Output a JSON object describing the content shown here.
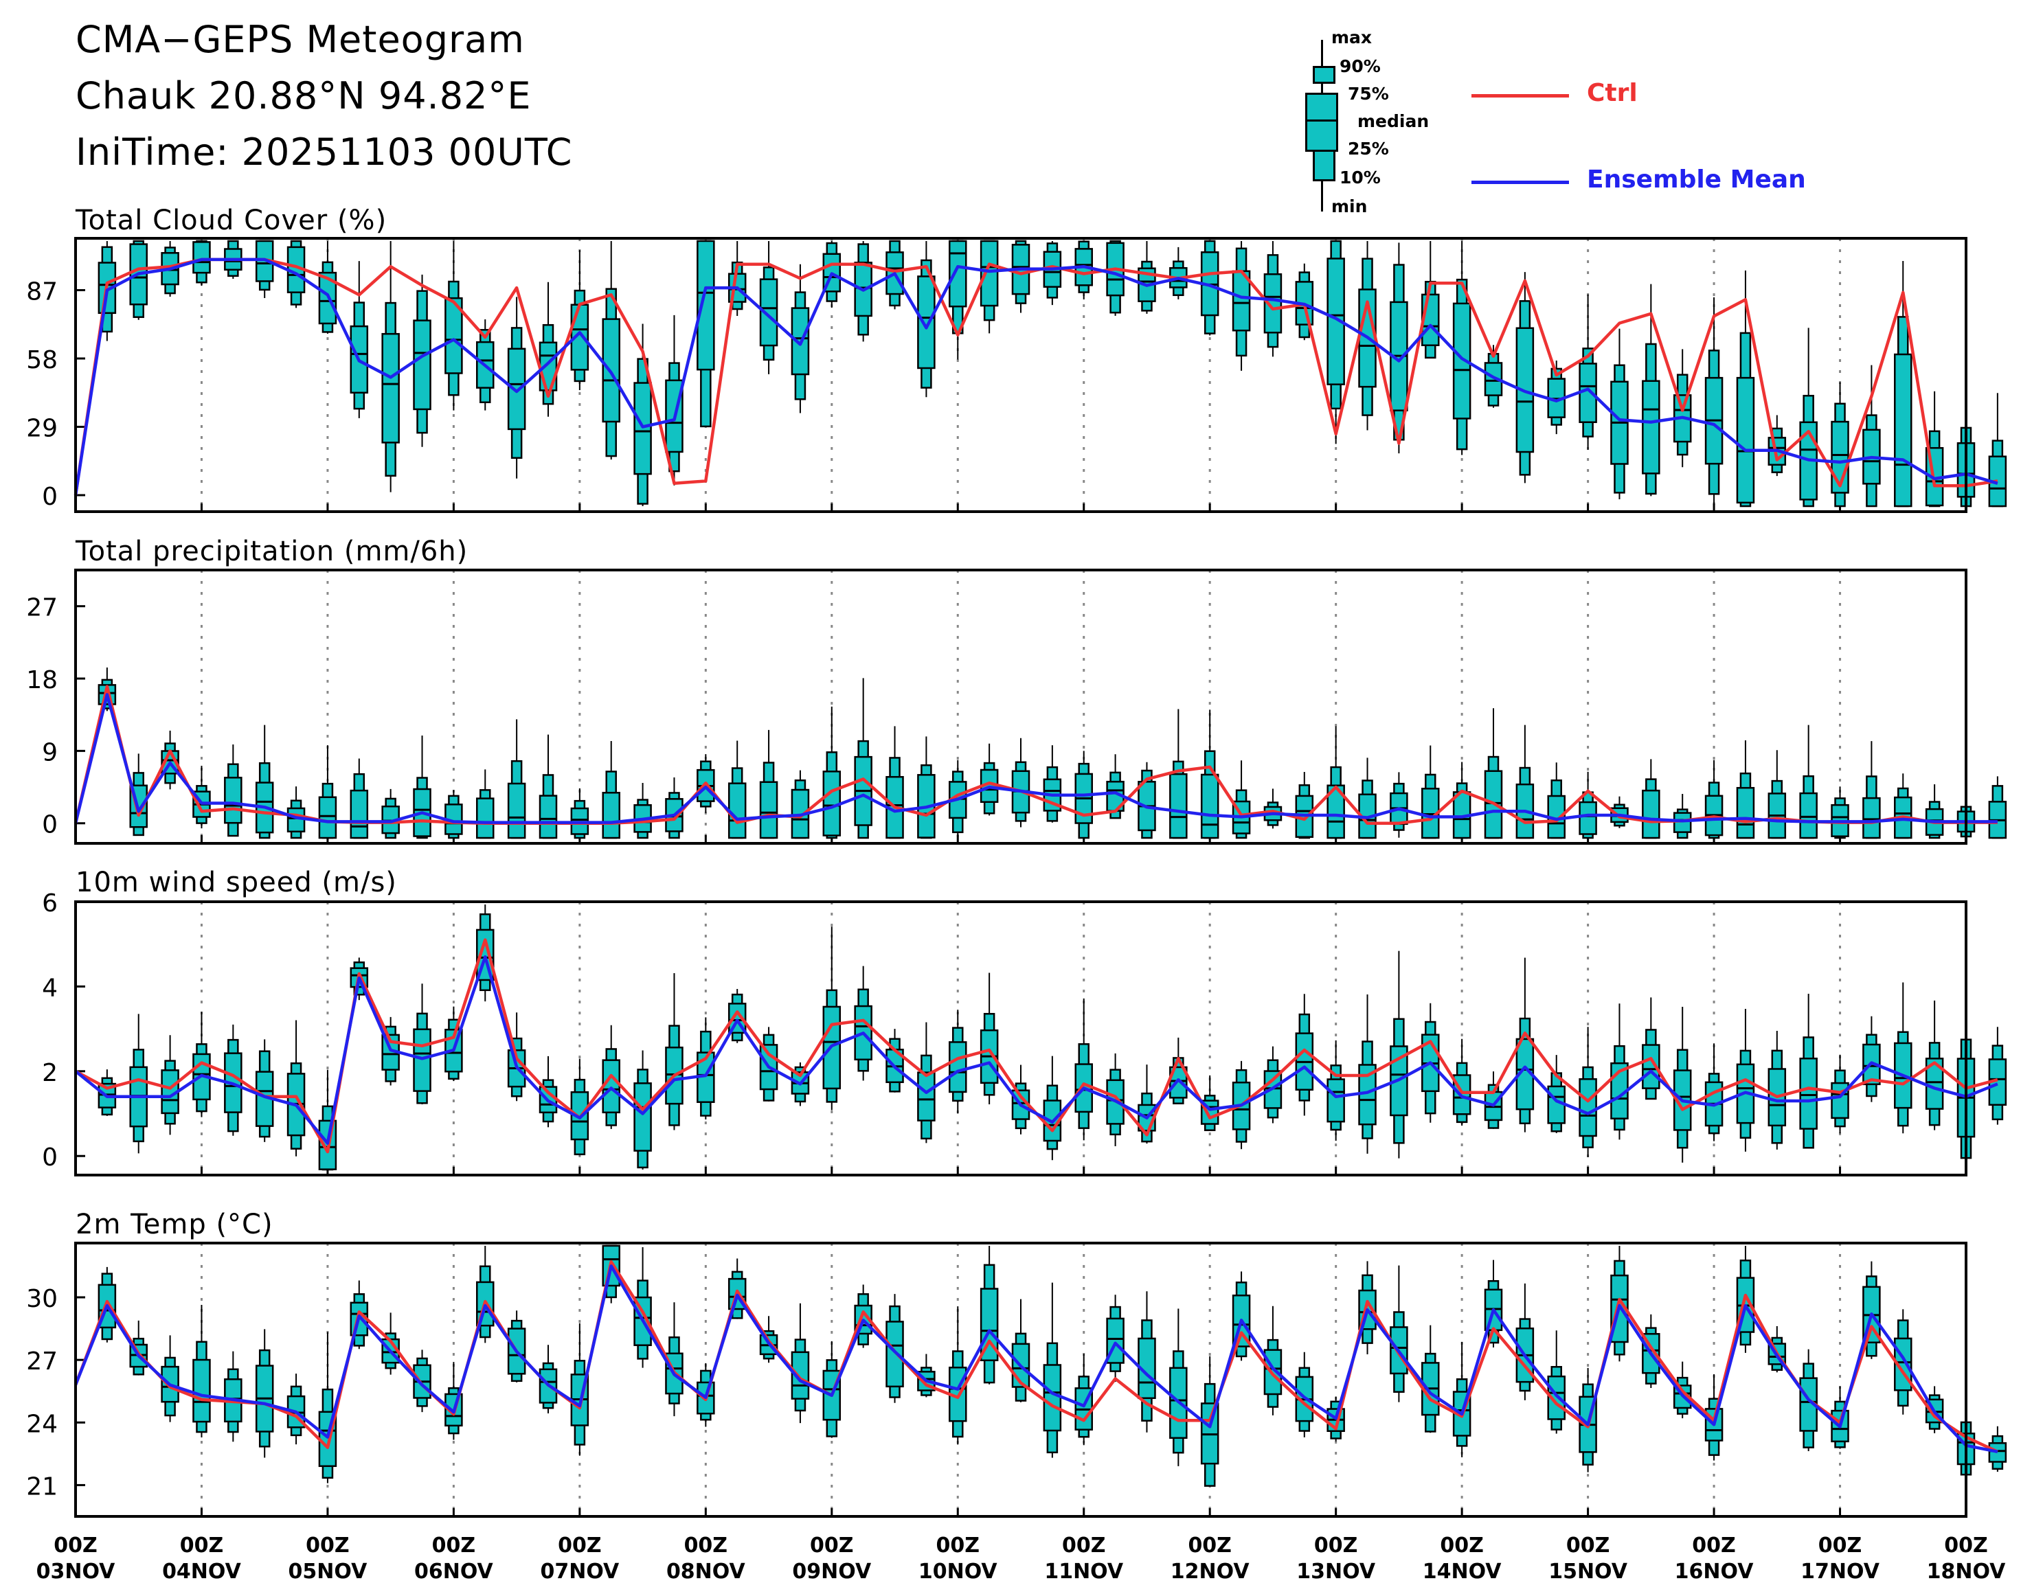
{
  "header": {
    "title": "CMA−GEPS Meteogram",
    "location": "Chauk 20.88°N 94.82°E",
    "init_time": "IniTime: 20251103 00UTC"
  },
  "legend": {
    "box_labels": [
      "max",
      "90%",
      "75%",
      "median",
      "25%",
      "10%",
      "min"
    ],
    "ctrl_label": "Ctrl",
    "mean_label": "Ensemble Mean"
  },
  "colors": {
    "ctrl": "#ee3333",
    "mean": "#2222ee",
    "box_fill": "#11c2c2",
    "frame": "#000000",
    "grid": "#888888"
  },
  "chart_data": [
    {
      "type": "box-and-line",
      "title": "Total Cloud Cover (%)",
      "yticks": [
        0,
        29,
        58,
        87
      ],
      "ylim": [
        -7,
        109
      ],
      "ctrl": [
        0,
        90,
        96,
        97,
        100,
        100,
        100,
        97,
        92,
        85,
        97,
        89,
        82,
        67,
        88,
        42,
        81,
        85,
        61,
        5,
        6,
        98,
        98,
        92,
        98,
        98,
        95,
        97,
        68,
        98,
        94,
        97,
        94,
        96,
        94,
        92,
        94,
        95,
        79,
        81,
        26,
        82,
        22,
        90,
        90,
        59,
        91,
        51,
        59,
        73,
        77,
        36,
        76,
        83,
        15,
        27,
        4,
        42,
        86,
        4,
        4,
        6
      ],
      "mean": [
        0,
        87,
        94,
        96,
        100,
        100,
        100,
        94,
        85,
        57,
        50,
        59,
        66,
        55,
        44,
        56,
        69,
        52,
        29,
        32,
        88,
        88,
        76,
        64,
        94,
        87,
        94,
        71,
        97,
        95,
        96,
        96,
        97,
        94,
        89,
        92,
        89,
        84,
        83,
        81,
        75,
        67,
        57,
        72,
        58,
        50,
        44,
        40,
        45,
        32,
        31,
        33,
        30,
        19,
        19,
        15,
        14,
        16,
        15,
        7,
        9,
        5
      ],
      "xlabels": [
        "00Z 03NOV",
        "00Z 04NOV",
        "00Z 05NOV",
        "00Z 06NOV",
        "00Z 07NOV",
        "00Z 08NOV",
        "00Z 09NOV",
        "00Z 10NOV",
        "00Z 11NOV",
        "00Z 12NOV",
        "00Z 13NOV",
        "00Z 14NOV",
        "00Z 15NOV",
        "00Z 16NOV",
        "00Z 17NOV",
        "00Z 18NOV"
      ],
      "xlabel_top": [
        "00Z",
        "00Z",
        "00Z",
        "00Z",
        "00Z",
        "00Z",
        "00Z",
        "00Z",
        "00Z",
        "00Z",
        "00Z",
        "00Z",
        "00Z",
        "00Z",
        "00Z",
        "00Z"
      ],
      "xlabel_bottom": [
        "03NOV",
        "04NOV",
        "05NOV",
        "06NOV",
        "07NOV",
        "08NOV",
        "09NOV",
        "10NOV",
        "11NOV",
        "12NOV",
        "13NOV",
        "14NOV",
        "15NOV",
        "16NOV",
        "17NOV",
        "18NOV"
      ],
      "steps_per_day": 4,
      "days": 15
    },
    {
      "type": "box-and-line",
      "title": "Total precipitation (mm/6h)",
      "yticks": [
        0,
        9,
        18,
        27
      ],
      "ylim": [
        -2.5,
        31.5
      ],
      "ctrl": [
        0,
        17,
        1,
        9,
        1.5,
        1.8,
        1.3,
        1,
        0.2,
        0.1,
        0.1,
        0.3,
        0.1,
        0,
        0,
        0,
        0,
        0,
        0.2,
        0.5,
        5,
        0.1,
        1,
        0.8,
        4,
        5.5,
        2,
        1,
        3.5,
        5,
        4,
        2.5,
        1,
        1.5,
        5.5,
        6.5,
        7,
        1,
        1.5,
        0.5,
        4.5,
        0,
        0,
        0.5,
        4,
        2.5,
        0.1,
        0.3,
        4,
        0.8,
        0.2,
        0.3,
        0.8,
        0.2,
        0.6,
        0.2,
        0.1,
        0.1,
        0.8,
        0.1,
        0.1,
        0.1
      ],
      "mean": [
        0,
        16,
        1.5,
        7.5,
        2.5,
        2.5,
        2,
        0.7,
        0.2,
        0.2,
        0.2,
        1.3,
        0.2,
        0.1,
        0.1,
        0.1,
        0.1,
        0.1,
        0.5,
        1,
        4.5,
        0.5,
        0.8,
        1,
        2,
        3.5,
        1.5,
        2,
        3,
        4.5,
        4,
        3.5,
        3.5,
        3.8,
        2,
        1.5,
        1,
        0.8,
        1.2,
        1,
        1,
        0.7,
        1.8,
        0.8,
        0.8,
        1.5,
        1.5,
        0.5,
        1,
        1,
        0.5,
        0.3,
        0.5,
        0.6,
        0.3,
        0.2,
        0.2,
        0.2,
        0.5,
        0.2,
        0.2,
        0.2
      ],
      "xlabels": []
    },
    {
      "type": "box-and-line",
      "title": "10m wind speed (m/s)",
      "yticks": [
        0,
        2,
        4,
        6
      ],
      "ylim": [
        -0.45,
        6
      ],
      "ctrl": [
        2,
        1.6,
        1.8,
        1.6,
        2.2,
        1.9,
        1.4,
        1.4,
        0.1,
        4.3,
        2.7,
        2.6,
        2.8,
        5.1,
        2.3,
        1.5,
        0.9,
        1.9,
        1.1,
        1.9,
        2.3,
        3.4,
        2.4,
        1.9,
        3.1,
        3.2,
        2.5,
        1.9,
        2.3,
        2.5,
        1.4,
        0.6,
        1.7,
        1.4,
        0.5,
        2.3,
        0.9,
        1.2,
        1.8,
        2.5,
        1.9,
        1.9,
        2.3,
        2.7,
        1.5,
        1.5,
        2.9,
        1.9,
        1.3,
        2,
        2.3,
        1.1,
        1.5,
        1.8,
        1.4,
        1.6,
        1.5,
        1.8,
        1.7,
        2.2,
        1.6,
        1.8
      ],
      "mean": [
        2,
        1.4,
        1.4,
        1.4,
        1.9,
        1.7,
        1.4,
        1.2,
        0.3,
        4.2,
        2.5,
        2.3,
        2.5,
        4.7,
        2.1,
        1.3,
        0.9,
        1.6,
        1,
        1.8,
        1.9,
        3.2,
        2.1,
        1.7,
        2.6,
        2.9,
        2.1,
        1.5,
        2,
        2.2,
        1.2,
        0.8,
        1.6,
        1.3,
        0.9,
        1.8,
        1.1,
        1.2,
        1.6,
        2.1,
        1.4,
        1.5,
        1.8,
        2.2,
        1.4,
        1.2,
        2.1,
        1.3,
        1,
        1.4,
        2,
        1.3,
        1.2,
        1.5,
        1.3,
        1.3,
        1.4,
        2.2,
        1.9,
        1.6,
        1.4,
        1.7
      ],
      "xlabels": []
    },
    {
      "type": "box-and-line",
      "title": "2m Temp (°C)",
      "yticks": [
        21,
        24,
        27,
        30
      ],
      "ylim": [
        19.5,
        32.6
      ],
      "ctrl": [
        25.8,
        29.8,
        27.3,
        25.7,
        25.1,
        25,
        24.9,
        24.3,
        22.8,
        29.3,
        27.9,
        25.8,
        24.4,
        29.8,
        27.4,
        25.8,
        24.7,
        31.7,
        29.3,
        26.4,
        25.1,
        30.3,
        27.9,
        26.1,
        25.3,
        29.3,
        27.4,
        25.8,
        25.2,
        27.9,
        25.9,
        24.8,
        24.1,
        26.1,
        24.9,
        24.1,
        24.1,
        28.3,
        26.3,
        24.9,
        23.7,
        29.8,
        27.3,
        25.1,
        24.3,
        28.5,
        26.7,
        24.9,
        23.8,
        29.9,
        27.6,
        25.5,
        24.1,
        30.1,
        27.3,
        25.1,
        24,
        28.6,
        26.4,
        24.3,
        23.3,
        22.6
      ],
      "mean": [
        25.8,
        29.6,
        27.2,
        25.8,
        25.3,
        25.1,
        24.9,
        24.5,
        23.3,
        29.1,
        27.4,
        25.8,
        24.5,
        29.6,
        27.4,
        25.8,
        24.8,
        31.5,
        28.9,
        26.3,
        25.2,
        30.1,
        27.8,
        26,
        25.3,
        28.9,
        27.4,
        26,
        25.6,
        28.4,
        26.7,
        25.4,
        24.8,
        27.8,
        26.3,
        25,
        23.8,
        28.9,
        26.6,
        25.2,
        24.2,
        29.4,
        27.4,
        25.4,
        24.4,
        29.4,
        27.2,
        25.3,
        23.9,
        29.6,
        27.3,
        25.3,
        23.9,
        29.6,
        27.2,
        25.1,
        23.8,
        29.2,
        27.1,
        24.5,
        22.9,
        22.6
      ]
    }
  ]
}
